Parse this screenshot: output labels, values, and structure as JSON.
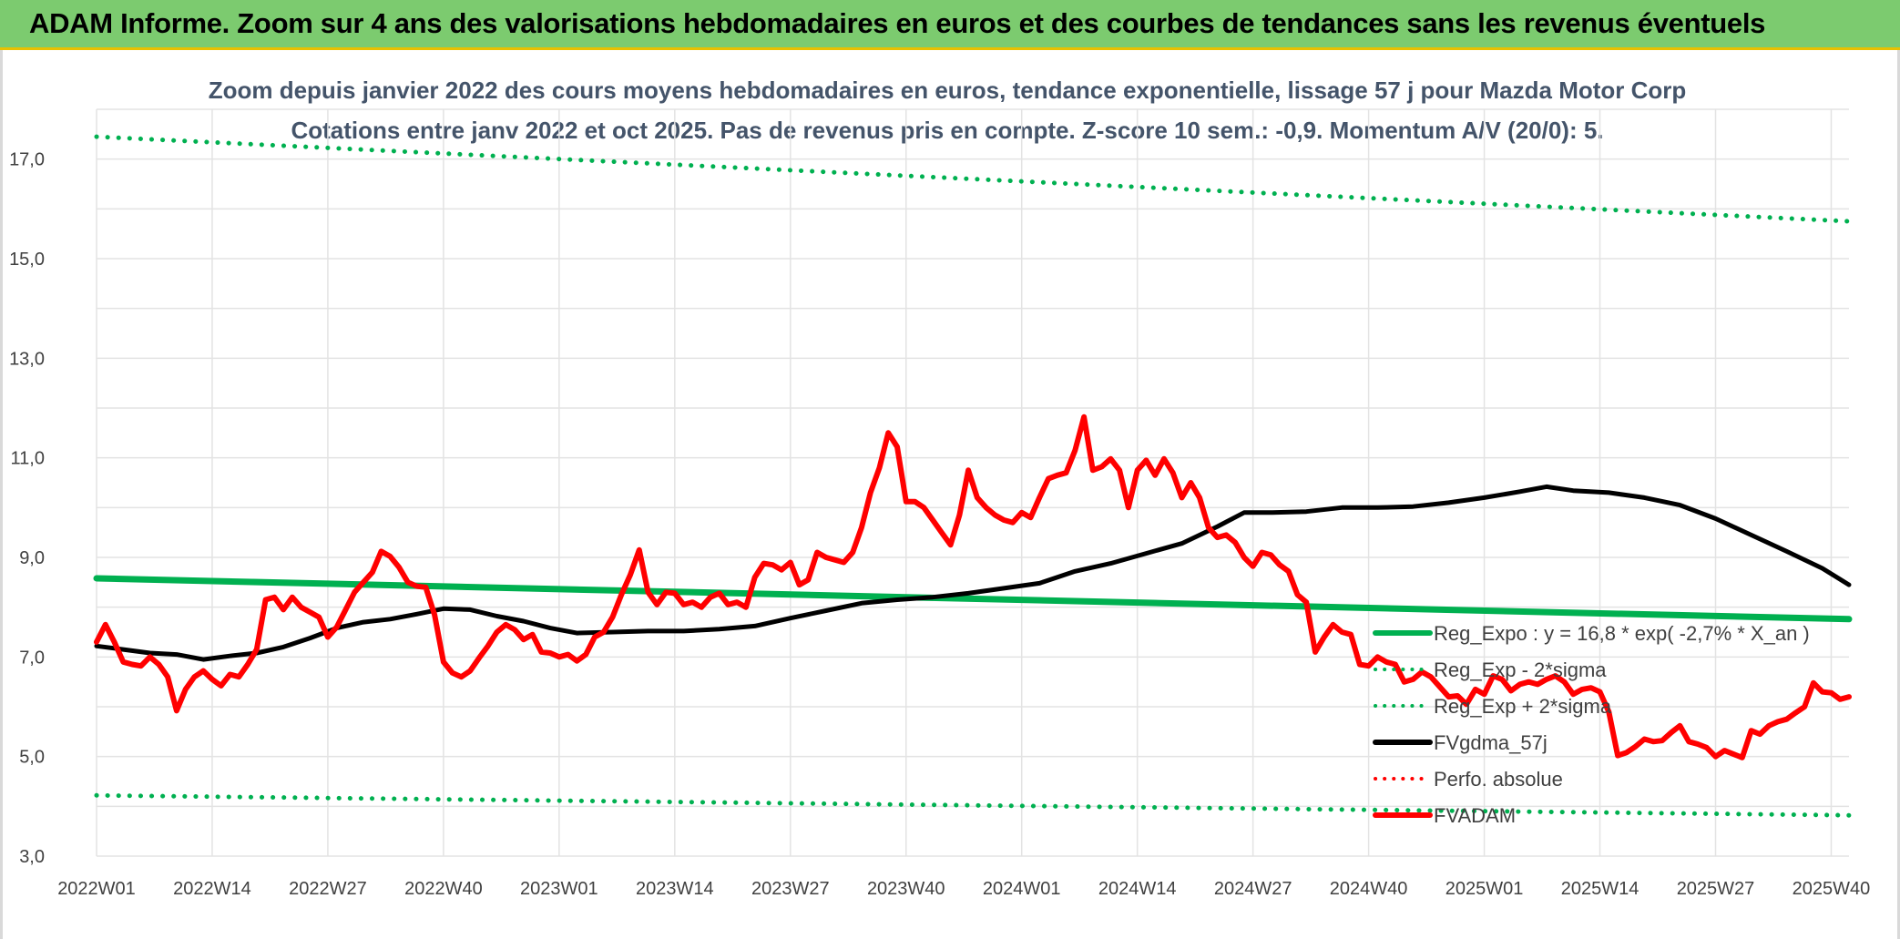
{
  "banner": {
    "title": "ADAM Informe. Zoom sur 4 ans des valorisations hebdomadaires en euros et des courbes de tendances sans les revenus éventuels",
    "background": "#7ccb6f"
  },
  "chart_data": {
    "type": "line",
    "title": "Zoom depuis janvier 2022 des cours moyens hebdomadaires en euros, tendance exponentielle, lissage 57 j pour Mazda Motor Corp",
    "subtitle": "Cotations entre janv 2022 et oct 2025. Pas de revenus pris en compte. Z-score 10 sem.: -0,9. Momentum A/V (20/0): 5.",
    "xlabel": "",
    "ylabel": "",
    "ylim": [
      3,
      18
    ],
    "yticks": [
      "3,0",
      "5,0",
      "7,0",
      "9,0",
      "11,0",
      "13,0",
      "15,0",
      "17,0"
    ],
    "ytick_values": [
      3,
      5,
      7,
      9,
      11,
      13,
      15,
      17
    ],
    "x_range_weeks": [
      0,
      197
    ],
    "xtick_labels": [
      "2022W01",
      "2022W14",
      "2022W27",
      "2022W40",
      "2023W01",
      "2023W14",
      "2023W27",
      "2023W40",
      "2024W01",
      "2024W14",
      "2024W27",
      "2024W40",
      "2025W01",
      "2025W14",
      "2025W27",
      "2025W40"
    ],
    "xtick_positions": [
      0,
      13,
      26,
      39,
      52,
      65,
      78,
      91,
      104,
      117,
      130,
      143,
      156,
      169,
      182,
      195
    ],
    "grid": true,
    "legend_position": "right",
    "series": [
      {
        "name": "Reg_Expo : y = 16,8 * exp( -2,7% *  X_an )",
        "color": "#00b050",
        "style": "solid",
        "width": 7,
        "points": [
          [
            0,
            8.58
          ],
          [
            197,
            7.76
          ]
        ]
      },
      {
        "name": "Reg_Exp - 2*sigma",
        "color": "#00b050",
        "style": "dotted",
        "width": 5,
        "points": [
          [
            0,
            4.22
          ],
          [
            197,
            3.82
          ]
        ]
      },
      {
        "name": "Reg_Exp + 2*sigma",
        "color": "#00b050",
        "style": "dotted",
        "width": 5,
        "points": [
          [
            0,
            17.45
          ],
          [
            197,
            15.75
          ]
        ]
      },
      {
        "name": "FVgdma_57j",
        "color": "#000000",
        "style": "solid",
        "width": 5,
        "points": [
          [
            0,
            7.22
          ],
          [
            3,
            7.15
          ],
          [
            6,
            7.08
          ],
          [
            9,
            7.05
          ],
          [
            12,
            6.95
          ],
          [
            15,
            7.02
          ],
          [
            18,
            7.08
          ],
          [
            21,
            7.2
          ],
          [
            24,
            7.38
          ],
          [
            27,
            7.58
          ],
          [
            30,
            7.7
          ],
          [
            33,
            7.76
          ],
          [
            36,
            7.86
          ],
          [
            39,
            7.97
          ],
          [
            42,
            7.95
          ],
          [
            45,
            7.82
          ],
          [
            48,
            7.72
          ],
          [
            51,
            7.58
          ],
          [
            54,
            7.48
          ],
          [
            58,
            7.5
          ],
          [
            62,
            7.52
          ],
          [
            66,
            7.52
          ],
          [
            70,
            7.56
          ],
          [
            74,
            7.62
          ],
          [
            78,
            7.78
          ],
          [
            82,
            7.93
          ],
          [
            86,
            8.08
          ],
          [
            90,
            8.15
          ],
          [
            94,
            8.2
          ],
          [
            98,
            8.28
          ],
          [
            102,
            8.38
          ],
          [
            106,
            8.48
          ],
          [
            110,
            8.72
          ],
          [
            114,
            8.88
          ],
          [
            118,
            9.08
          ],
          [
            122,
            9.28
          ],
          [
            126,
            9.62
          ],
          [
            129,
            9.9
          ],
          [
            132,
            9.9
          ],
          [
            136,
            9.92
          ],
          [
            140,
            10.0
          ],
          [
            144,
            10.0
          ],
          [
            148,
            10.02
          ],
          [
            152,
            10.1
          ],
          [
            156,
            10.2
          ],
          [
            160,
            10.32
          ],
          [
            163,
            10.42
          ],
          [
            166,
            10.34
          ],
          [
            170,
            10.3
          ],
          [
            174,
            10.2
          ],
          [
            178,
            10.05
          ],
          [
            182,
            9.78
          ],
          [
            186,
            9.45
          ],
          [
            190,
            9.12
          ],
          [
            194,
            8.78
          ],
          [
            197,
            8.45
          ]
        ]
      },
      {
        "name": "Perfo. absolue",
        "color": "#ff0000",
        "style": "dotted",
        "width": 3,
        "points": []
      },
      {
        "name": "FVADAM",
        "color": "#ff0000",
        "style": "solid",
        "width": 6,
        "points": [
          [
            0,
            7.3
          ],
          [
            1,
            7.65
          ],
          [
            2,
            7.3
          ],
          [
            3,
            6.9
          ],
          [
            4,
            6.85
          ],
          [
            5,
            6.82
          ],
          [
            6,
            7.0
          ],
          [
            7,
            6.85
          ],
          [
            8,
            6.6
          ],
          [
            9,
            5.92
          ],
          [
            10,
            6.35
          ],
          [
            11,
            6.6
          ],
          [
            12,
            6.72
          ],
          [
            13,
            6.55
          ],
          [
            14,
            6.42
          ],
          [
            15,
            6.65
          ],
          [
            16,
            6.6
          ],
          [
            17,
            6.85
          ],
          [
            18,
            7.15
          ],
          [
            19,
            8.15
          ],
          [
            20,
            8.2
          ],
          [
            21,
            7.95
          ],
          [
            22,
            8.2
          ],
          [
            23,
            8.0
          ],
          [
            24,
            7.9
          ],
          [
            25,
            7.8
          ],
          [
            26,
            7.4
          ],
          [
            27,
            7.6
          ],
          [
            28,
            7.95
          ],
          [
            29,
            8.3
          ],
          [
            30,
            8.5
          ],
          [
            31,
            8.7
          ],
          [
            32,
            9.12
          ],
          [
            33,
            9.02
          ],
          [
            34,
            8.8
          ],
          [
            35,
            8.5
          ],
          [
            36,
            8.42
          ],
          [
            37,
            8.4
          ],
          [
            38,
            7.85
          ],
          [
            39,
            6.9
          ],
          [
            40,
            6.68
          ],
          [
            41,
            6.6
          ],
          [
            42,
            6.72
          ],
          [
            43,
            6.98
          ],
          [
            44,
            7.22
          ],
          [
            45,
            7.5
          ],
          [
            46,
            7.65
          ],
          [
            47,
            7.55
          ],
          [
            48,
            7.35
          ],
          [
            49,
            7.45
          ],
          [
            50,
            7.1
          ],
          [
            51,
            7.08
          ],
          [
            52,
            7.0
          ],
          [
            53,
            7.05
          ],
          [
            54,
            6.92
          ],
          [
            55,
            7.05
          ],
          [
            56,
            7.4
          ],
          [
            57,
            7.5
          ],
          [
            58,
            7.8
          ],
          [
            59,
            8.25
          ],
          [
            60,
            8.65
          ],
          [
            61,
            9.15
          ],
          [
            62,
            8.3
          ],
          [
            63,
            8.05
          ],
          [
            64,
            8.3
          ],
          [
            65,
            8.28
          ],
          [
            66,
            8.05
          ],
          [
            67,
            8.1
          ],
          [
            68,
            8.0
          ],
          [
            69,
            8.2
          ],
          [
            70,
            8.28
          ],
          [
            71,
            8.05
          ],
          [
            72,
            8.1
          ],
          [
            73,
            8.0
          ],
          [
            74,
            8.6
          ],
          [
            75,
            8.88
          ],
          [
            76,
            8.85
          ],
          [
            77,
            8.75
          ],
          [
            78,
            8.9
          ],
          [
            79,
            8.45
          ],
          [
            80,
            8.55
          ],
          [
            81,
            9.1
          ],
          [
            82,
            9.0
          ],
          [
            83,
            8.95
          ],
          [
            84,
            8.9
          ],
          [
            85,
            9.1
          ],
          [
            86,
            9.6
          ],
          [
            87,
            10.3
          ],
          [
            88,
            10.8
          ],
          [
            89,
            11.5
          ],
          [
            90,
            11.22
          ],
          [
            91,
            10.12
          ],
          [
            92,
            10.12
          ],
          [
            93,
            10.0
          ],
          [
            94,
            9.75
          ],
          [
            95,
            9.5
          ],
          [
            96,
            9.25
          ],
          [
            97,
            9.85
          ],
          [
            98,
            10.75
          ],
          [
            99,
            10.2
          ],
          [
            100,
            10.0
          ],
          [
            101,
            9.85
          ],
          [
            102,
            9.75
          ],
          [
            103,
            9.7
          ],
          [
            104,
            9.9
          ],
          [
            105,
            9.8
          ],
          [
            106,
            10.2
          ],
          [
            107,
            10.58
          ],
          [
            108,
            10.65
          ],
          [
            109,
            10.7
          ],
          [
            110,
            11.15
          ],
          [
            111,
            11.82
          ],
          [
            112,
            10.75
          ],
          [
            113,
            10.82
          ],
          [
            114,
            10.98
          ],
          [
            115,
            10.75
          ],
          [
            116,
            10.0
          ],
          [
            117,
            10.75
          ],
          [
            118,
            10.95
          ],
          [
            119,
            10.65
          ],
          [
            120,
            10.98
          ],
          [
            121,
            10.7
          ],
          [
            122,
            10.2
          ],
          [
            123,
            10.5
          ],
          [
            124,
            10.2
          ],
          [
            125,
            9.6
          ],
          [
            126,
            9.4
          ],
          [
            127,
            9.45
          ],
          [
            128,
            9.3
          ],
          [
            129,
            9.0
          ],
          [
            130,
            8.82
          ],
          [
            131,
            9.1
          ],
          [
            132,
            9.05
          ],
          [
            133,
            8.85
          ],
          [
            134,
            8.72
          ],
          [
            135,
            8.25
          ],
          [
            136,
            8.1
          ],
          [
            137,
            7.1
          ],
          [
            138,
            7.4
          ],
          [
            139,
            7.65
          ],
          [
            140,
            7.5
          ],
          [
            141,
            7.45
          ],
          [
            142,
            6.85
          ],
          [
            143,
            6.82
          ],
          [
            144,
            7.0
          ],
          [
            145,
            6.9
          ],
          [
            146,
            6.85
          ],
          [
            147,
            6.5
          ],
          [
            148,
            6.55
          ],
          [
            149,
            6.7
          ],
          [
            150,
            6.6
          ],
          [
            151,
            6.4
          ],
          [
            152,
            6.2
          ],
          [
            153,
            6.22
          ],
          [
            154,
            6.05
          ],
          [
            155,
            6.35
          ],
          [
            156,
            6.25
          ],
          [
            157,
            6.62
          ],
          [
            158,
            6.55
          ],
          [
            159,
            6.32
          ],
          [
            160,
            6.45
          ],
          [
            161,
            6.5
          ],
          [
            162,
            6.45
          ],
          [
            163,
            6.55
          ],
          [
            164,
            6.62
          ],
          [
            165,
            6.5
          ],
          [
            166,
            6.25
          ],
          [
            167,
            6.35
          ],
          [
            168,
            6.38
          ],
          [
            169,
            6.3
          ],
          [
            170,
            5.9
          ],
          [
            171,
            5.02
          ],
          [
            172,
            5.08
          ],
          [
            173,
            5.2
          ],
          [
            174,
            5.35
          ],
          [
            175,
            5.3
          ],
          [
            176,
            5.32
          ],
          [
            177,
            5.48
          ],
          [
            178,
            5.62
          ],
          [
            179,
            5.3
          ],
          [
            180,
            5.25
          ],
          [
            181,
            5.18
          ],
          [
            182,
            5.0
          ],
          [
            183,
            5.12
          ],
          [
            184,
            5.05
          ],
          [
            185,
            4.98
          ],
          [
            186,
            5.52
          ],
          [
            187,
            5.45
          ],
          [
            188,
            5.62
          ],
          [
            189,
            5.7
          ],
          [
            190,
            5.75
          ],
          [
            191,
            5.88
          ],
          [
            192,
            6.0
          ],
          [
            193,
            6.48
          ],
          [
            194,
            6.3
          ],
          [
            195,
            6.28
          ],
          [
            196,
            6.15
          ],
          [
            197,
            6.2
          ]
        ]
      }
    ]
  }
}
